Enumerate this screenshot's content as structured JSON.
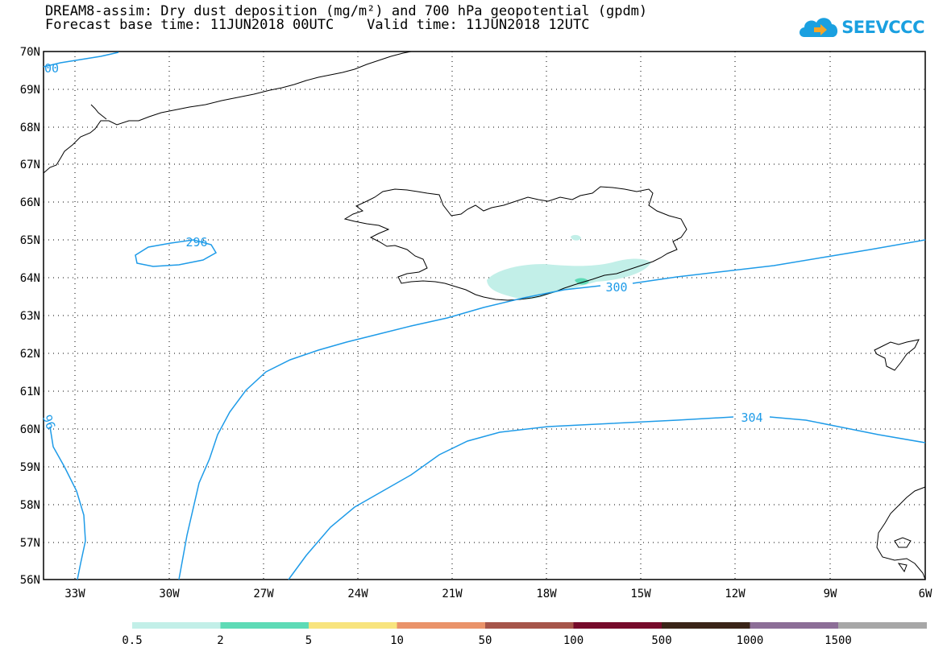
{
  "header": {
    "title_line1": "DREAM8-assim: Dry dust deposition (mg/m²) and 700 hPa geopotential (gpdm)",
    "title_line2": "Forecast base time: 11JUN2018 00UTC    Valid time: 11JUN2018 12UTC"
  },
  "logo": {
    "text": "SEEVCCC",
    "icon": "cloud-arrow-icon",
    "color": "#1aa0e0"
  },
  "map": {
    "region": {
      "lon_min": -34,
      "lon_max": -6,
      "lat_min": 56,
      "lat_max": 70
    },
    "lat_labels": [
      "56N",
      "57N",
      "58N",
      "59N",
      "60N",
      "61N",
      "62N",
      "63N",
      "64N",
      "65N",
      "66N",
      "67N",
      "68N",
      "69N",
      "70N"
    ],
    "lon_labels": [
      "33W",
      "30W",
      "27W",
      "24W",
      "21W",
      "18W",
      "15W",
      "12W",
      "9W",
      "6W"
    ],
    "contour_color": "#1e9be8",
    "contour_labels": [
      {
        "text": "296"
      },
      {
        "text": "300"
      },
      {
        "text": "304"
      },
      {
        "text": "00"
      },
      {
        "text": "96"
      }
    ]
  },
  "legend": {
    "colors": [
      "#c2efe8",
      "#5edbb6",
      "#f8e47e",
      "#ea936a",
      "#a6554a",
      "#760b2b",
      "#3a2418",
      "#8c6e97",
      "#a7a7a7"
    ],
    "labels": [
      "0.5",
      "2",
      "5",
      "10",
      "50",
      "100",
      "500",
      "1000",
      "1500"
    ]
  }
}
